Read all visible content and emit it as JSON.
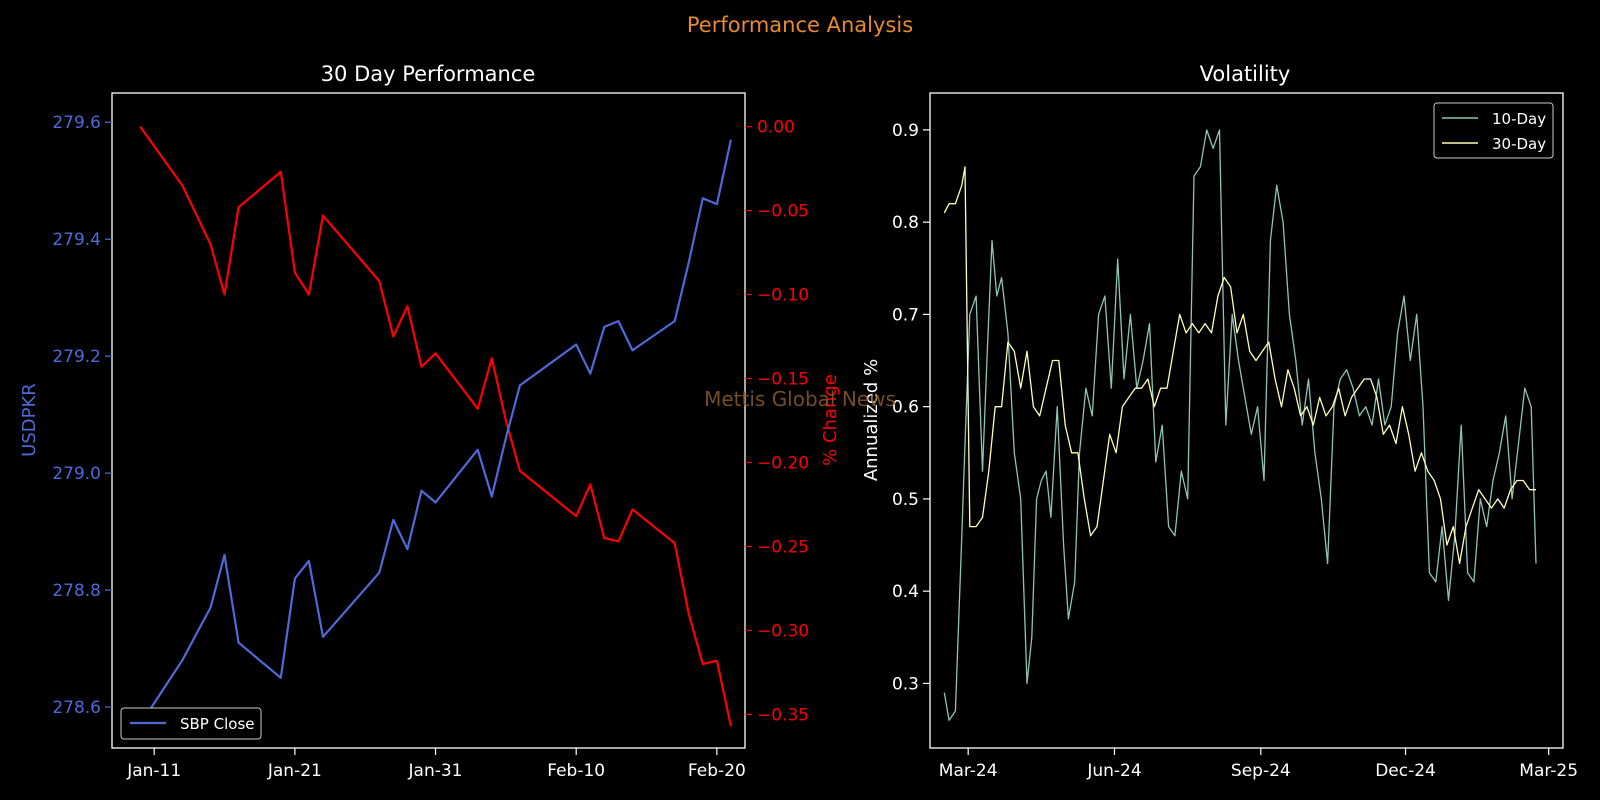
{
  "figure": {
    "title": "Performance Analysis",
    "watermark": "Mettis Global News",
    "colors": {
      "background": "#000000",
      "suptitle": "#e8892e",
      "close_line": "#4f6ad8",
      "pct_line": "#ff0000",
      "vol10": "#8dc5b5",
      "vol30": "#ffffb3",
      "axis": "#ffffff",
      "watermark": "#8a5a2b"
    }
  },
  "chart_data": [
    {
      "type": "line",
      "title": "30 Day Performance",
      "ylabel": "USDPKR",
      "y2label": "% Change",
      "x_ticks": [
        "Jan-11",
        "Jan-21",
        "Jan-31",
        "Feb-10",
        "Feb-20"
      ],
      "y_ticks": [
        "278.6",
        "278.8",
        "279.0",
        "279.2",
        "279.4",
        "279.6"
      ],
      "y2_ticks": [
        "0.00",
        "−0.05",
        "−0.10",
        "−0.15",
        "−0.20",
        "−0.25",
        "−0.30",
        "−0.35"
      ],
      "xlim": [
        "2025-01-08",
        "2025-02-22"
      ],
      "ylim": [
        278.53,
        279.65
      ],
      "y2lim": [
        -0.37,
        0.02
      ],
      "legend": {
        "position": "lower-left",
        "entries": [
          "SBP Close"
        ]
      },
      "series": [
        {
          "name": "SBP Close",
          "axis": "left",
          "x": [
            "2025-01-10",
            "2025-01-13",
            "2025-01-15",
            "2025-01-16",
            "2025-01-17",
            "2025-01-20",
            "2025-01-21",
            "2025-01-22",
            "2025-01-23",
            "2025-01-27",
            "2025-01-28",
            "2025-01-29",
            "2025-01-30",
            "2025-01-31",
            "2025-02-03",
            "2025-02-04",
            "2025-02-05",
            "2025-02-06",
            "2025-02-10",
            "2025-02-11",
            "2025-02-12",
            "2025-02-13",
            "2025-02-14",
            "2025-02-17",
            "2025-02-18",
            "2025-02-19",
            "2025-02-20",
            "2025-02-21"
          ],
          "y": [
            278.57,
            278.68,
            278.77,
            278.86,
            278.71,
            278.65,
            278.82,
            278.85,
            278.72,
            278.83,
            278.92,
            278.87,
            278.97,
            278.95,
            279.04,
            278.96,
            279.06,
            279.15,
            279.22,
            279.17,
            279.25,
            279.26,
            279.21,
            279.26,
            279.36,
            279.47,
            279.46,
            279.57
          ]
        },
        {
          "name": "% Change",
          "axis": "right",
          "x": [
            "2025-01-10",
            "2025-01-13",
            "2025-01-15",
            "2025-01-16",
            "2025-01-17",
            "2025-01-20",
            "2025-01-21",
            "2025-01-22",
            "2025-01-23",
            "2025-01-27",
            "2025-01-28",
            "2025-01-29",
            "2025-01-30",
            "2025-01-31",
            "2025-02-03",
            "2025-02-04",
            "2025-02-05",
            "2025-02-06",
            "2025-02-10",
            "2025-02-11",
            "2025-02-12",
            "2025-02-13",
            "2025-02-14",
            "2025-02-17",
            "2025-02-18",
            "2025-02-19",
            "2025-02-20",
            "2025-02-21"
          ],
          "y": [
            0.0,
            -0.035,
            -0.07,
            -0.1,
            -0.048,
            -0.027,
            -0.087,
            -0.1,
            -0.053,
            -0.092,
            -0.125,
            -0.107,
            -0.143,
            -0.135,
            -0.168,
            -0.138,
            -0.175,
            -0.205,
            -0.232,
            -0.213,
            -0.245,
            -0.247,
            -0.228,
            -0.248,
            -0.29,
            -0.32,
            -0.318,
            -0.357
          ]
        }
      ]
    },
    {
      "type": "line",
      "title": "Volatility",
      "ylabel": "Annualized %",
      "x_ticks": [
        "Mar-24",
        "Jun-24",
        "Sep-24",
        "Dec-24",
        "Mar-25"
      ],
      "y_ticks": [
        "0.3",
        "0.4",
        "0.5",
        "0.6",
        "0.7",
        "0.8",
        "0.9"
      ],
      "xlim": [
        "2024-02-06",
        "2025-03-10"
      ],
      "ylim": [
        0.23,
        0.94
      ],
      "legend": {
        "position": "top-right",
        "entries": [
          "10-Day",
          "30-Day"
        ]
      },
      "series": [
        {
          "name": "10-Day",
          "x": [
            "2024-02-15",
            "2024-02-18",
            "2024-02-22",
            "2024-02-26",
            "2024-02-28",
            "2024-03-02",
            "2024-03-06",
            "2024-03-10",
            "2024-03-13",
            "2024-03-16",
            "2024-03-19",
            "2024-03-22",
            "2024-03-26",
            "2024-03-30",
            "2024-04-03",
            "2024-04-07",
            "2024-04-10",
            "2024-04-13",
            "2024-04-16",
            "2024-04-19",
            "2024-04-22",
            "2024-04-26",
            "2024-04-30",
            "2024-05-03",
            "2024-05-07",
            "2024-05-10",
            "2024-05-14",
            "2024-05-18",
            "2024-05-22",
            "2024-05-26",
            "2024-05-30",
            "2024-06-03",
            "2024-06-07",
            "2024-06-11",
            "2024-06-15",
            "2024-06-19",
            "2024-06-23",
            "2024-06-27",
            "2024-07-01",
            "2024-07-05",
            "2024-07-09",
            "2024-07-13",
            "2024-07-17",
            "2024-07-21",
            "2024-07-25",
            "2024-07-29",
            "2024-08-02",
            "2024-08-06",
            "2024-08-10",
            "2024-08-14",
            "2024-08-18",
            "2024-08-22",
            "2024-08-26",
            "2024-08-30",
            "2024-09-03",
            "2024-09-07",
            "2024-09-11",
            "2024-09-15",
            "2024-09-19",
            "2024-09-23",
            "2024-09-27",
            "2024-10-01",
            "2024-10-05",
            "2024-10-09",
            "2024-10-13",
            "2024-10-17",
            "2024-10-21",
            "2024-10-25",
            "2024-10-29",
            "2024-11-02",
            "2024-11-06",
            "2024-11-10",
            "2024-11-14",
            "2024-11-18",
            "2024-11-22",
            "2024-11-26",
            "2024-11-30",
            "2024-12-04",
            "2024-12-08",
            "2024-12-12",
            "2024-12-16",
            "2024-12-20",
            "2024-12-24",
            "2024-12-28",
            "2025-01-01",
            "2025-01-05",
            "2025-01-09",
            "2025-01-13",
            "2025-01-17",
            "2025-01-21",
            "2025-01-25",
            "2025-01-29",
            "2025-02-02",
            "2025-02-06",
            "2025-02-10",
            "2025-02-14",
            "2025-02-18",
            "2025-02-21"
          ],
          "y": [
            0.29,
            0.26,
            0.27,
            0.46,
            0.56,
            0.7,
            0.72,
            0.53,
            0.66,
            0.78,
            0.72,
            0.74,
            0.68,
            0.55,
            0.5,
            0.3,
            0.35,
            0.5,
            0.52,
            0.53,
            0.48,
            0.6,
            0.45,
            0.37,
            0.41,
            0.55,
            0.62,
            0.59,
            0.7,
            0.72,
            0.62,
            0.76,
            0.63,
            0.7,
            0.62,
            0.65,
            0.69,
            0.54,
            0.58,
            0.47,
            0.46,
            0.53,
            0.5,
            0.85,
            0.86,
            0.9,
            0.88,
            0.9,
            0.58,
            0.7,
            0.65,
            0.61,
            0.57,
            0.6,
            0.52,
            0.78,
            0.84,
            0.8,
            0.7,
            0.65,
            0.58,
            0.63,
            0.55,
            0.5,
            0.43,
            0.6,
            0.63,
            0.64,
            0.62,
            0.59,
            0.6,
            0.58,
            0.63,
            0.58,
            0.6,
            0.68,
            0.72,
            0.65,
            0.7,
            0.6,
            0.42,
            0.41,
            0.47,
            0.39,
            0.46,
            0.58,
            0.42,
            0.41,
            0.5,
            0.47,
            0.52,
            0.55,
            0.59,
            0.5,
            0.56,
            0.62,
            0.6,
            0.43
          ]
        },
        {
          "name": "30-Day",
          "x": [
            "2024-02-15",
            "2024-02-18",
            "2024-02-22",
            "2024-02-26",
            "2024-02-28",
            "2024-03-02",
            "2024-03-06",
            "2024-03-10",
            "2024-03-14",
            "2024-03-18",
            "2024-03-22",
            "2024-03-26",
            "2024-03-30",
            "2024-04-03",
            "2024-04-07",
            "2024-04-11",
            "2024-04-15",
            "2024-04-19",
            "2024-04-23",
            "2024-04-27",
            "2024-05-01",
            "2024-05-05",
            "2024-05-09",
            "2024-05-13",
            "2024-05-17",
            "2024-05-21",
            "2024-05-25",
            "2024-05-29",
            "2024-06-02",
            "2024-06-06",
            "2024-06-10",
            "2024-06-14",
            "2024-06-18",
            "2024-06-22",
            "2024-06-26",
            "2024-06-30",
            "2024-07-04",
            "2024-07-08",
            "2024-07-12",
            "2024-07-16",
            "2024-07-20",
            "2024-07-24",
            "2024-07-28",
            "2024-08-01",
            "2024-08-05",
            "2024-08-09",
            "2024-08-13",
            "2024-08-17",
            "2024-08-21",
            "2024-08-25",
            "2024-08-29",
            "2024-09-02",
            "2024-09-06",
            "2024-09-10",
            "2024-09-14",
            "2024-09-18",
            "2024-09-22",
            "2024-09-26",
            "2024-09-30",
            "2024-10-04",
            "2024-10-08",
            "2024-10-12",
            "2024-10-16",
            "2024-10-20",
            "2024-10-24",
            "2024-10-28",
            "2024-11-01",
            "2024-11-05",
            "2024-11-09",
            "2024-11-13",
            "2024-11-17",
            "2024-11-21",
            "2024-11-25",
            "2024-11-29",
            "2024-12-03",
            "2024-12-07",
            "2024-12-11",
            "2024-12-15",
            "2024-12-19",
            "2024-12-23",
            "2024-12-27",
            "2024-12-31",
            "2025-01-04",
            "2025-01-08",
            "2025-01-12",
            "2025-01-16",
            "2025-01-20",
            "2025-01-24",
            "2025-01-28",
            "2025-02-01",
            "2025-02-05",
            "2025-02-09",
            "2025-02-13",
            "2025-02-17",
            "2025-02-21"
          ],
          "y": [
            0.81,
            0.82,
            0.82,
            0.84,
            0.86,
            0.47,
            0.47,
            0.48,
            0.53,
            0.6,
            0.6,
            0.67,
            0.66,
            0.62,
            0.66,
            0.6,
            0.59,
            0.62,
            0.65,
            0.65,
            0.58,
            0.55,
            0.55,
            0.5,
            0.46,
            0.47,
            0.52,
            0.57,
            0.55,
            0.6,
            0.61,
            0.62,
            0.62,
            0.63,
            0.6,
            0.62,
            0.62,
            0.66,
            0.7,
            0.68,
            0.69,
            0.68,
            0.69,
            0.68,
            0.72,
            0.74,
            0.73,
            0.68,
            0.7,
            0.66,
            0.65,
            0.66,
            0.67,
            0.63,
            0.6,
            0.64,
            0.62,
            0.59,
            0.6,
            0.58,
            0.61,
            0.59,
            0.6,
            0.62,
            0.59,
            0.61,
            0.62,
            0.63,
            0.63,
            0.61,
            0.57,
            0.58,
            0.56,
            0.6,
            0.57,
            0.53,
            0.55,
            0.53,
            0.52,
            0.5,
            0.45,
            0.47,
            0.43,
            0.47,
            0.49,
            0.51,
            0.5,
            0.49,
            0.5,
            0.49,
            0.51,
            0.52,
            0.52,
            0.51,
            0.51
          ]
        }
      ]
    }
  ]
}
